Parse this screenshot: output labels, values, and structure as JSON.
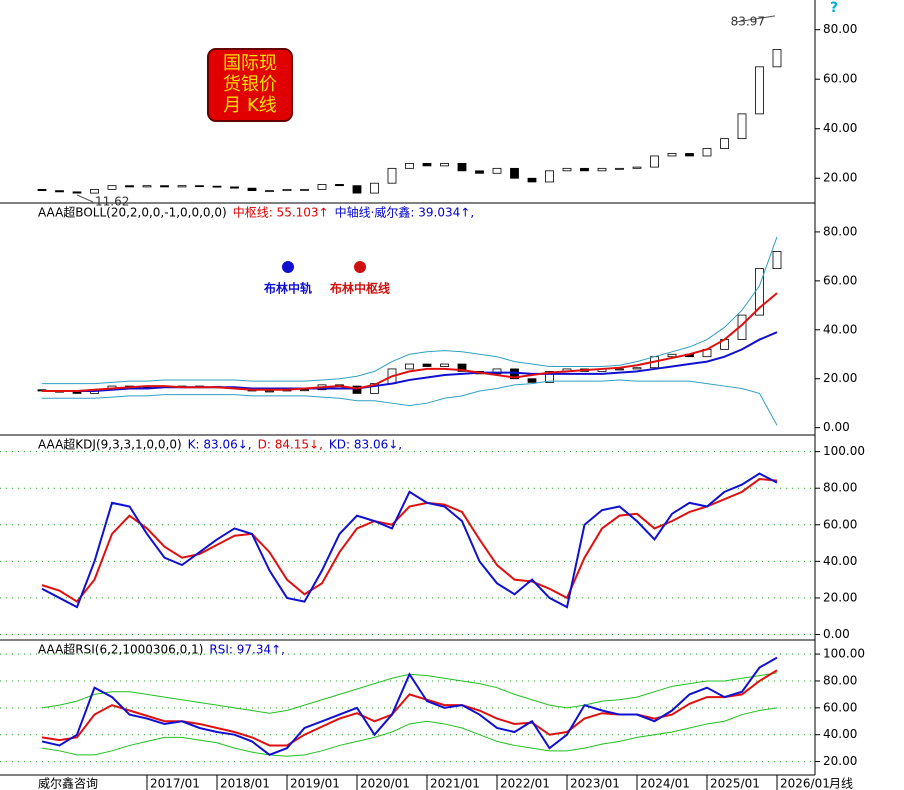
{
  "chart_data": [
    {
      "type": "candlestick",
      "title": [
        "国际现",
        "货银价",
        "月 K线"
      ],
      "help": "?",
      "open": [
        15.5,
        15,
        14.5,
        14,
        15.5,
        17,
        16.5,
        17,
        16.5,
        17,
        16.8,
        16.5,
        16,
        15,
        15,
        15.5,
        15.5,
        17.5,
        17,
        14,
        18,
        24,
        26,
        25,
        26,
        23,
        22,
        24,
        20,
        18.5,
        23,
        24,
        23,
        24,
        24,
        24.5,
        29,
        30,
        29,
        32,
        36,
        46,
        65
      ],
      "close": [
        15,
        14.5,
        14,
        15.5,
        17,
        16.5,
        17,
        16.5,
        17,
        16.8,
        16.5,
        16,
        15,
        15,
        15.5,
        15.5,
        17.5,
        17,
        14,
        18,
        24,
        26,
        25,
        26,
        23,
        22,
        24,
        20,
        18.5,
        23,
        24,
        23,
        24,
        24,
        24.5,
        29,
        30,
        29,
        32,
        36,
        46,
        65,
        72
      ],
      "high_label": 83.97,
      "low_label": 11.62,
      "ylim": [
        10,
        92
      ],
      "yticks": [
        {
          "value": 20,
          "label": "20.00"
        },
        {
          "value": 40,
          "label": "40.00"
        },
        {
          "value": 60,
          "label": "60.00"
        },
        {
          "value": 80,
          "label": "80.00"
        }
      ]
    },
    {
      "type": "line",
      "header": [
        {
          "text": "AAA超BOLL(20,2,0,0,-1,0,0,0,0)",
          "color": "#000000"
        },
        {
          "text": "中枢线: 55.103↑",
          "color": "#e00000"
        },
        {
          "text": "中轴线·威尔鑫: 39.034↑,",
          "color": "#0000cc"
        }
      ],
      "legend": [
        {
          "text": "布林中轨",
          "color": "#1010d0"
        },
        {
          "text": "布林中枢线",
          "color": "#d01010"
        }
      ],
      "ylim": [
        -3,
        91
      ],
      "yticks": [
        {
          "value": 0,
          "label": "0.00"
        },
        {
          "value": 20,
          "label": "20.00"
        },
        {
          "value": 40,
          "label": "40.00"
        },
        {
          "value": 60,
          "label": "60.00"
        },
        {
          "value": 80,
          "label": "80.00"
        }
      ],
      "series": [
        {
          "name": "upper",
          "color": "#30a0c0",
          "values": [
            18,
            18,
            18,
            18,
            18.5,
            19,
            19,
            19.5,
            19.5,
            19.5,
            19.5,
            19.5,
            19,
            19,
            19,
            19,
            19.5,
            20,
            21,
            23,
            27,
            30,
            31,
            31.5,
            31,
            30,
            29,
            27,
            26,
            25,
            25,
            25,
            25,
            25.5,
            27,
            29,
            31,
            33,
            36,
            41,
            48,
            58,
            78
          ]
        },
        {
          "name": "lower",
          "color": "#30a0c0",
          "values": [
            12,
            12,
            12,
            12,
            12.5,
            13,
            13,
            13.5,
            13.5,
            13.5,
            13.5,
            13.5,
            13,
            13,
            13,
            13,
            12.5,
            12,
            11,
            11,
            10,
            9,
            10,
            12,
            13,
            15,
            16,
            17.5,
            18,
            19,
            19,
            19,
            19,
            19.5,
            19,
            19,
            19,
            19,
            18,
            17,
            16,
            14,
            1
          ]
        },
        {
          "name": "mid",
          "color": "#1010d0",
          "values": [
            15,
            15,
            15,
            15,
            15.5,
            16,
            16,
            16.5,
            16.5,
            16.5,
            16.5,
            16.5,
            16,
            16,
            16,
            16,
            16,
            16,
            16,
            17,
            18,
            19.5,
            20.5,
            21.5,
            22,
            22.5,
            22.5,
            22.5,
            22,
            22,
            22,
            22,
            22,
            22.5,
            23,
            24,
            25,
            26,
            27,
            29,
            32,
            36,
            39
          ]
        },
        {
          "name": "pivot",
          "color": "#e01010",
          "values": [
            15,
            15,
            15,
            15.5,
            16,
            16.5,
            17,
            17,
            16.5,
            16.5,
            16.5,
            16,
            15.5,
            15.5,
            15.5,
            16,
            16.5,
            17,
            16,
            17.5,
            21,
            23,
            24,
            24,
            23.5,
            22.5,
            21.5,
            20.5,
            21.5,
            22.5,
            23,
            23.5,
            24,
            24.5,
            25.5,
            27,
            28.5,
            30,
            32,
            36,
            42,
            49,
            55
          ]
        }
      ]
    },
    {
      "type": "line",
      "header": [
        {
          "text": "AAA超KDJ(9,3,3,1,0,0,0)",
          "color": "#000000"
        },
        {
          "text": "K: 83.06↓,",
          "color": "#0000cc"
        },
        {
          "text": "D: 84.15↓,",
          "color": "#e00000"
        },
        {
          "text": "KD: 83.06↓,",
          "color": "#0000cc"
        }
      ],
      "grid": true,
      "ylim": [
        -3,
        108
      ],
      "yticks": [
        {
          "value": 0,
          "label": "0.00"
        },
        {
          "value": 20,
          "label": "20.00"
        },
        {
          "value": 40,
          "label": "40.00"
        },
        {
          "value": 60,
          "label": "60.00"
        },
        {
          "value": 80,
          "label": "80.00"
        },
        {
          "value": 100,
          "label": "100.00"
        }
      ],
      "series": [
        {
          "name": "D",
          "color": "#e01010",
          "values": [
            27,
            24,
            18,
            30,
            55,
            65,
            58,
            48,
            42,
            44,
            49,
            54,
            55,
            45,
            30,
            22,
            28,
            45,
            58,
            62,
            60,
            70,
            72,
            71,
            67,
            52,
            38,
            30,
            29,
            25,
            20,
            42,
            58,
            65,
            66,
            58,
            62,
            67,
            70,
            74,
            78,
            85,
            84.15
          ]
        },
        {
          "name": "K",
          "color": "#1010d0",
          "values": [
            25,
            20,
            15,
            40,
            72,
            70,
            55,
            42,
            38,
            45,
            52,
            58,
            55,
            35,
            20,
            18,
            35,
            55,
            65,
            62,
            58,
            78,
            72,
            70,
            62,
            40,
            28,
            22,
            30,
            20,
            15,
            60,
            68,
            70,
            62,
            52,
            66,
            72,
            70,
            78,
            82,
            88,
            83.06
          ]
        }
      ]
    },
    {
      "type": "line",
      "header": [
        {
          "text": "AAA超RSI(6,2,1000306,0,1)",
          "color": "#000000"
        },
        {
          "text": "RSI: 97.34↑,",
          "color": "#0000cc"
        }
      ],
      "grid": true,
      "ylim": [
        10,
        109
      ],
      "yticks": [
        {
          "value": 20,
          "label": "20.00"
        },
        {
          "value": 40,
          "label": "40.00"
        },
        {
          "value": 60,
          "label": "60.00"
        },
        {
          "value": 80,
          "label": "80.00"
        },
        {
          "value": 100,
          "label": "100.00"
        }
      ],
      "source": "威尔鑫咨询",
      "period": "月线",
      "categories": [
        null,
        null,
        null,
        null,
        null,
        null,
        "2017/01",
        null,
        null,
        null,
        "2018/01",
        null,
        null,
        null,
        "2019/01",
        null,
        null,
        null,
        "2020/01",
        null,
        null,
        null,
        "2021/01",
        null,
        null,
        null,
        "2022/01",
        null,
        null,
        null,
        "2023/01",
        null,
        null,
        null,
        "2024/01",
        null,
        null,
        null,
        "2025/01",
        null,
        null,
        null,
        "2026/01"
      ],
      "series": [
        {
          "name": "upper",
          "color": "#20c020",
          "values": [
            60,
            62,
            65,
            70,
            72,
            72,
            70,
            68,
            66,
            64,
            62,
            60,
            58,
            56,
            58,
            62,
            66,
            70,
            74,
            78,
            82,
            85,
            84,
            82,
            80,
            78,
            75,
            70,
            66,
            62,
            60,
            62,
            65,
            66,
            68,
            72,
            76,
            78,
            80,
            80,
            82,
            84,
            86
          ]
        },
        {
          "name": "lower",
          "color": "#20c020",
          "values": [
            30,
            28,
            25,
            25,
            28,
            32,
            35,
            38,
            38,
            36,
            34,
            30,
            27,
            25,
            24,
            25,
            28,
            32,
            35,
            38,
            42,
            48,
            50,
            48,
            45,
            40,
            35,
            32,
            30,
            28,
            28,
            30,
            33,
            35,
            38,
            40,
            42,
            45,
            48,
            50,
            55,
            58,
            60
          ]
        },
        {
          "name": "smooth",
          "color": "#e01010",
          "values": [
            38,
            36,
            38,
            55,
            62,
            58,
            54,
            50,
            50,
            48,
            45,
            42,
            38,
            32,
            32,
            40,
            46,
            52,
            56,
            50,
            55,
            70,
            66,
            62,
            62,
            58,
            52,
            48,
            49,
            40,
            42,
            52,
            56,
            55,
            55,
            52,
            55,
            63,
            68,
            68,
            70,
            80,
            88
          ]
        },
        {
          "name": "RSI",
          "color": "#1010d0",
          "values": [
            35,
            32,
            40,
            75,
            68,
            55,
            52,
            48,
            50,
            45,
            42,
            40,
            35,
            25,
            30,
            45,
            50,
            55,
            60,
            40,
            55,
            85,
            65,
            60,
            62,
            55,
            45,
            42,
            50,
            30,
            40,
            62,
            58,
            55,
            55,
            50,
            58,
            70,
            75,
            68,
            72,
            90,
            97.34
          ]
        }
      ]
    }
  ]
}
